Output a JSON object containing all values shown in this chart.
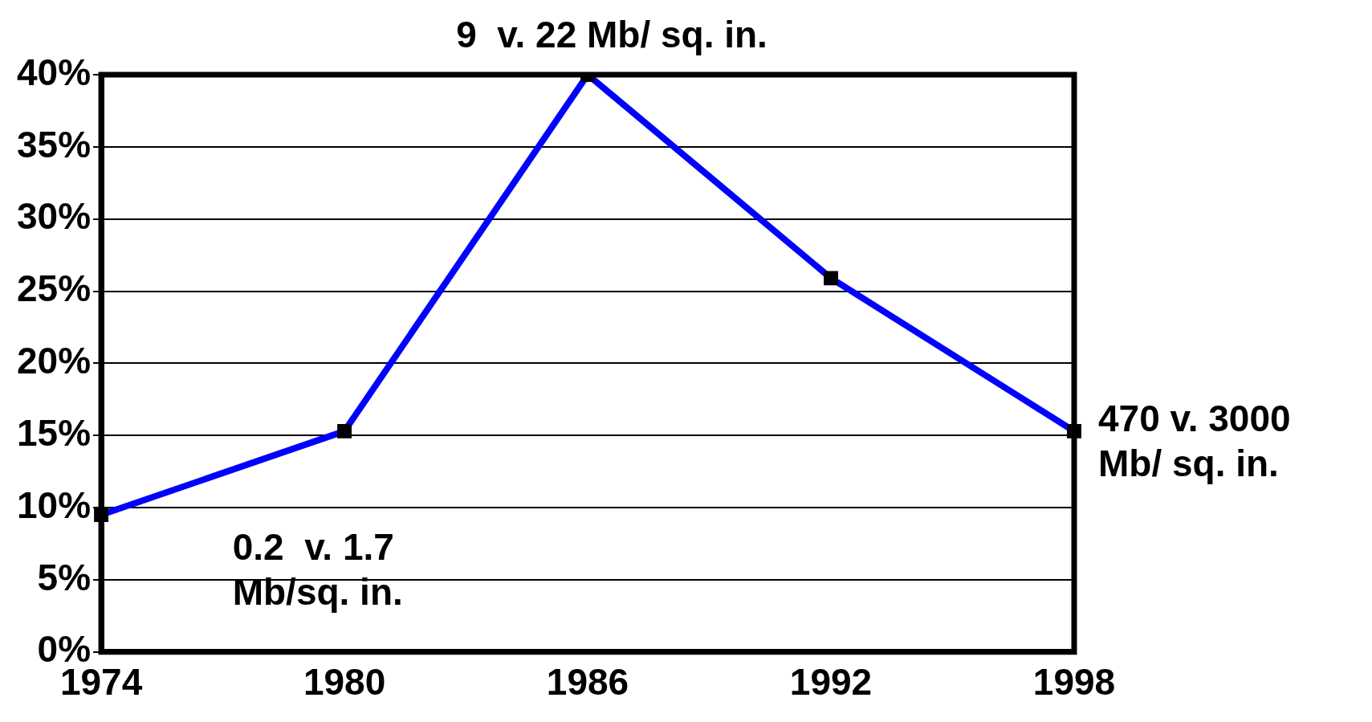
{
  "chart_data": {
    "type": "line",
    "categories": [
      "1974",
      "1980",
      "1986",
      "1992",
      "1998"
    ],
    "series": [
      {
        "color": "#0000ff",
        "values": [
          9.5,
          15.3,
          40,
          25.9,
          15.3
        ]
      }
    ],
    "ylim": [
      0,
      40
    ],
    "yticks": [
      {
        "value": 0,
        "label": "0%"
      },
      {
        "value": 5,
        "label": "5%"
      },
      {
        "value": 10,
        "label": "10%"
      },
      {
        "value": 15,
        "label": "15%"
      },
      {
        "value": 20,
        "label": "20%"
      },
      {
        "value": 25,
        "label": "25%"
      },
      {
        "value": 30,
        "label": "30%"
      },
      {
        "value": 35,
        "label": "35%"
      },
      {
        "value": 40,
        "label": "40%"
      }
    ],
    "grid": "y",
    "marker": "square",
    "line_style": "solid",
    "legend": false,
    "annotations": [
      "0.2  v. 1.7 Mb/sq. in.",
      {
        "text": "9  v. 22 Mb/ sq. in.",
        "x": "1986",
        "y": 40
      },
      {
        "text": "470 v. 3000 Mb/ sq. in.",
        "x": "1998",
        "y": 15.3
      }
    ]
  }
}
